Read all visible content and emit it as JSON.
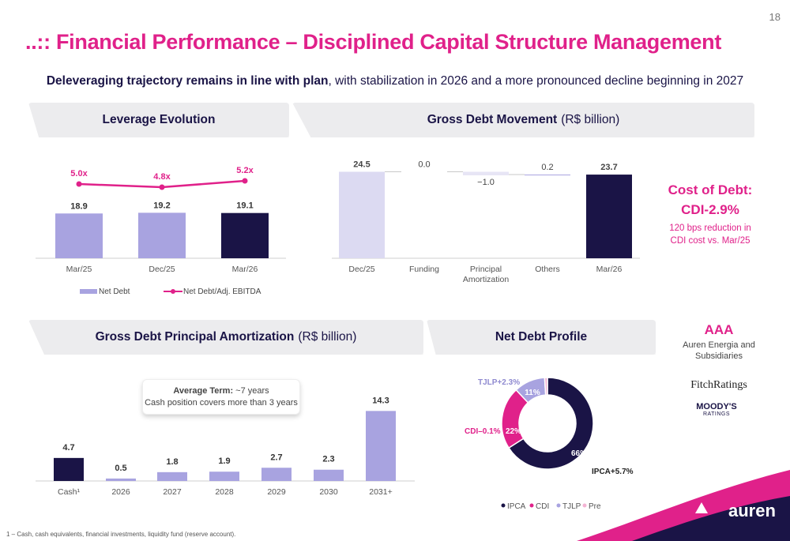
{
  "page_number": "18",
  "title": "..:: Financial Performance – Disciplined Capital Structure Management",
  "subtitle": {
    "bold": "Deleveraging trajectory remains in line with plan",
    "rest": ", with stabilization in 2026 and a more pronounced decline beginning in 2027"
  },
  "panels": {
    "leverage": {
      "title": "Leverage Evolution"
    },
    "gross_debt": {
      "title": "Gross Debt Movement",
      "unit": "(R$ billion)"
    },
    "amortization": {
      "title": "Gross Debt Principal Amortization",
      "unit": "(R$ billion)"
    },
    "net_debt_profile": {
      "title": "Net Debt Profile"
    }
  },
  "cost_of_debt": {
    "line1": "Cost of Debt:",
    "line2": "CDI-2.9%",
    "line3": "120 bps reduction in",
    "line4": "CDI cost vs. Mar/25"
  },
  "ratings": {
    "aaa": "AAA",
    "sub1": "Auren Energia and",
    "sub2": "Subsidiaries",
    "fitch": "FitchRatings",
    "moodys": "MOODY'S",
    "moodys_sub": "RATINGS"
  },
  "average_term": {
    "label": "Average Term:",
    "value": " ~7 years",
    "line2": "Cash position covers more than 3 years"
  },
  "footnote": "1 – Cash, cash equivalents, financial investments, liquidity fund (reserve account).",
  "logo": "auren",
  "colors": {
    "pink": "#e0218a",
    "navy": "#1a1446",
    "lavender": "#a8a3e0",
    "light_lavender": "#dcdaf2"
  },
  "chart_data": [
    {
      "type": "bar",
      "name": "Leverage Evolution",
      "categories": [
        "Mar/25",
        "Dec/25",
        "Mar/26"
      ],
      "series": [
        {
          "name": "Net Debt",
          "values": [
            18.9,
            19.2,
            19.1
          ],
          "labels": [
            "18.9",
            "19.2",
            "19.1"
          ]
        },
        {
          "name": "Net Debt/Adj. EBITDA",
          "type": "line",
          "values": [
            5.0,
            4.8,
            5.2
          ],
          "labels": [
            "5.0x",
            "4.8x",
            "5.2x"
          ]
        }
      ],
      "legend": "bottom-left"
    },
    {
      "type": "bar",
      "subtype": "waterfall",
      "name": "Gross Debt Movement",
      "categories": [
        "Dec/25",
        "Funding",
        "Principal Amortization",
        "Others",
        "Mar/26"
      ],
      "values": [
        24.5,
        0.0,
        -1.0,
        0.2,
        23.7
      ],
      "labels": [
        "24.5",
        "0.0",
        "−1.0",
        "0.2",
        "23.7"
      ]
    },
    {
      "type": "bar",
      "name": "Gross Debt Principal Amortization",
      "categories": [
        "Cash¹",
        "2026",
        "2027",
        "2028",
        "2029",
        "2030",
        "2031+"
      ],
      "values": [
        4.7,
        0.5,
        1.8,
        1.9,
        2.7,
        2.3,
        14.3
      ],
      "labels": [
        "4.7",
        "0.5",
        "1.8",
        "1.9",
        "2.7",
        "2.3",
        "14.3"
      ]
    },
    {
      "type": "pie",
      "subtype": "donut",
      "name": "Net Debt Profile",
      "slices": [
        {
          "name": "IPCA",
          "value": 66,
          "label": "66%",
          "callout": "IPCA+5.7%"
        },
        {
          "name": "CDI",
          "value": 22,
          "label": "22%",
          "callout": "CDI–0.1%"
        },
        {
          "name": "TJLP",
          "value": 11,
          "label": "11%",
          "callout": "TJLP+2.3%"
        },
        {
          "name": "Pre",
          "value": 1,
          "label": ""
        }
      ],
      "legend": [
        "IPCA",
        "CDI",
        "TJLP",
        "Pre"
      ]
    }
  ]
}
